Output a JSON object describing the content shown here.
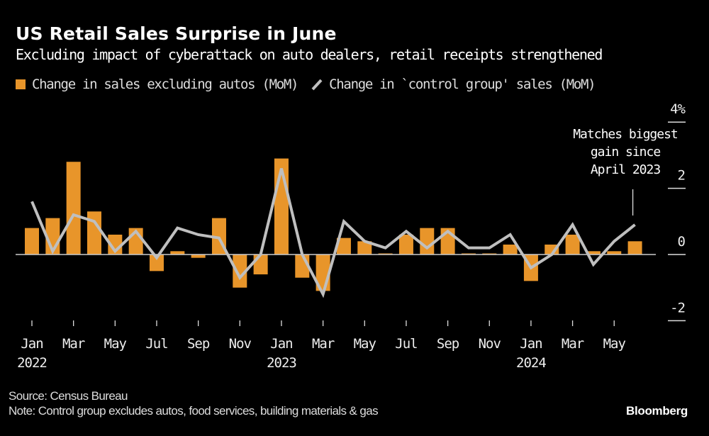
{
  "header": {
    "title": "US Retail Sales Surprise in June",
    "subtitle": "Excluding impact of cyberattack on auto dealers, retail receipts strengthened"
  },
  "legend": {
    "bar_label": "Change in sales excluding autos (MoM)",
    "line_label": "Change in `control group' sales (MoM)"
  },
  "footer": {
    "source": "Source: Census Bureau",
    "note": "Note: Control group excludes autos, food services, building materials & gas",
    "brand": "Bloomberg"
  },
  "colors": {
    "bar": "#E8952A",
    "line": "#BFBFBF",
    "background": "#000000",
    "axis": "#CCCCCC"
  },
  "chart_data": {
    "type": "bar",
    "title": "US Retail Sales Surprise in June",
    "subtitle": "Excluding impact of cyberattack on auto dealers, retail receipts strengthened",
    "xlabel": "",
    "ylabel": "",
    "ylim": [
      -2,
      4
    ],
    "yticks": [
      {
        "value": 4,
        "label": "4%"
      },
      {
        "value": 2,
        "label": "2"
      },
      {
        "value": 0,
        "label": "0"
      },
      {
        "value": -2,
        "label": "-2"
      }
    ],
    "grid": false,
    "legend_position": "top-left",
    "x": [
      "2022-01",
      "2022-02",
      "2022-03",
      "2022-04",
      "2022-05",
      "2022-06",
      "2022-07",
      "2022-08",
      "2022-09",
      "2022-10",
      "2022-11",
      "2022-12",
      "2023-01",
      "2023-02",
      "2023-03",
      "2023-04",
      "2023-05",
      "2023-06",
      "2023-07",
      "2023-08",
      "2023-09",
      "2023-10",
      "2023-11",
      "2023-12",
      "2024-01",
      "2024-02",
      "2024-03",
      "2024-04",
      "2024-05",
      "2024-06"
    ],
    "xtick_labels": [
      {
        "index": 0,
        "month": "Jan",
        "year": "2022"
      },
      {
        "index": 2,
        "month": "Mar",
        "year": ""
      },
      {
        "index": 4,
        "month": "May",
        "year": ""
      },
      {
        "index": 6,
        "month": "Jul",
        "year": ""
      },
      {
        "index": 8,
        "month": "Sep",
        "year": ""
      },
      {
        "index": 10,
        "month": "Nov",
        "year": ""
      },
      {
        "index": 12,
        "month": "Jan",
        "year": "2023"
      },
      {
        "index": 14,
        "month": "Mar",
        "year": ""
      },
      {
        "index": 16,
        "month": "May",
        "year": ""
      },
      {
        "index": 18,
        "month": "Jul",
        "year": ""
      },
      {
        "index": 20,
        "month": "Sep",
        "year": ""
      },
      {
        "index": 22,
        "month": "Nov",
        "year": ""
      },
      {
        "index": 24,
        "month": "Jan",
        "year": "2024"
      },
      {
        "index": 26,
        "month": "Mar",
        "year": ""
      },
      {
        "index": 28,
        "month": "May",
        "year": ""
      }
    ],
    "series": [
      {
        "name": "Change in sales excluding autos (MoM)",
        "type": "bar",
        "values": [
          0.8,
          1.1,
          2.8,
          1.3,
          0.6,
          0.8,
          -0.5,
          0.1,
          -0.1,
          1.1,
          -1.0,
          -0.6,
          2.9,
          -0.7,
          -1.1,
          0.5,
          0.4,
          0.0,
          0.6,
          0.8,
          0.8,
          0.0,
          0.0,
          0.3,
          -0.8,
          0.3,
          0.6,
          0.1,
          0.1,
          0.4
        ]
      },
      {
        "name": "Change in `control group' sales (MoM)",
        "type": "line",
        "values": [
          1.6,
          0.1,
          1.2,
          1.0,
          0.1,
          0.7,
          -0.1,
          0.8,
          0.6,
          0.5,
          -0.7,
          0.0,
          2.6,
          0.0,
          -1.2,
          1.0,
          0.4,
          0.2,
          0.7,
          0.2,
          0.7,
          0.2,
          0.2,
          0.6,
          -0.4,
          0.0,
          0.9,
          -0.3,
          0.4,
          0.9
        ]
      }
    ],
    "annotations": [
      {
        "index": 29,
        "series": "Change in `control group' sales (MoM)",
        "lines": [
          "Matches biggest",
          "gain since",
          "April 2023"
        ]
      }
    ]
  }
}
